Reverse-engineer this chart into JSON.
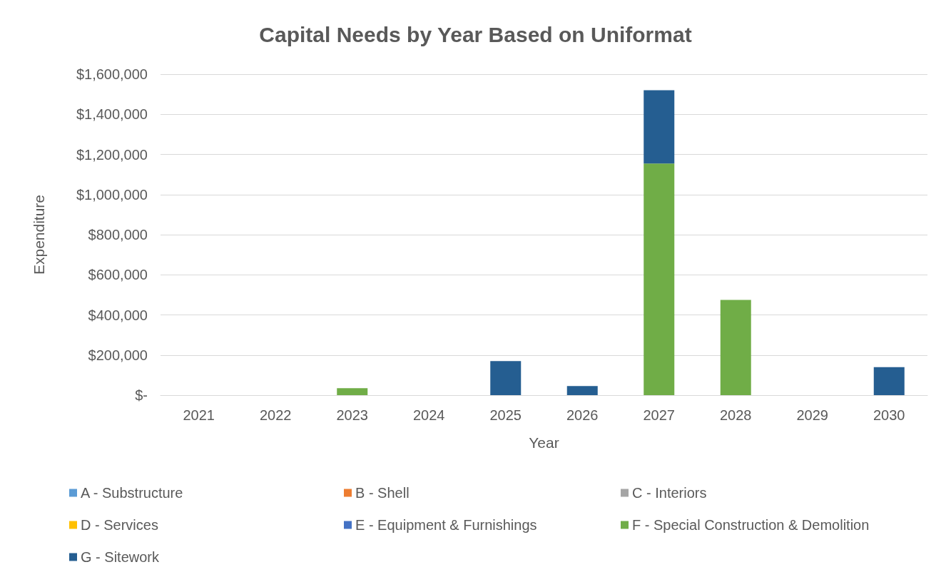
{
  "chart_data": {
    "type": "bar",
    "title": "Capital Needs by Year Based on Uniformat",
    "xlabel": "Year",
    "ylabel": "Expenditure",
    "categories": [
      "2021",
      "2022",
      "2023",
      "2024",
      "2025",
      "2026",
      "2027",
      "2028",
      "2029",
      "2030"
    ],
    "stacked": true,
    "series": [
      {
        "name": "A - Substructure",
        "color": "#5b9bd5",
        "values": [
          0,
          0,
          0,
          0,
          0,
          0,
          0,
          0,
          0,
          0
        ]
      },
      {
        "name": "B - Shell",
        "color": "#ed7d31",
        "values": [
          0,
          0,
          0,
          0,
          0,
          0,
          0,
          0,
          0,
          0
        ]
      },
      {
        "name": "C - Interiors",
        "color": "#a5a5a5",
        "values": [
          0,
          0,
          0,
          0,
          0,
          0,
          0,
          0,
          0,
          0
        ]
      },
      {
        "name": "D - Services",
        "color": "#ffc000",
        "values": [
          0,
          0,
          0,
          0,
          0,
          0,
          0,
          0,
          0,
          0
        ]
      },
      {
        "name": "E - Equipment & Furnishings",
        "color": "#4472c4",
        "values": [
          0,
          0,
          0,
          0,
          0,
          0,
          0,
          0,
          0,
          0
        ]
      },
      {
        "name": "F - Special Construction & Demolition",
        "color": "#70ad47",
        "values": [
          0,
          0,
          35000,
          0,
          0,
          0,
          1155000,
          475000,
          0,
          0
        ]
      },
      {
        "name": "G - Sitework",
        "color": "#255e91",
        "values": [
          0,
          0,
          0,
          0,
          170000,
          45000,
          365000,
          0,
          0,
          140000
        ]
      }
    ],
    "ylim": [
      0,
      1600000
    ],
    "yticks": [
      {
        "value": 0,
        "label": "$-"
      },
      {
        "value": 200000,
        "label": "$200,000"
      },
      {
        "value": 400000,
        "label": "$400,000"
      },
      {
        "value": 600000,
        "label": "$600,000"
      },
      {
        "value": 800000,
        "label": "$800,000"
      },
      {
        "value": 1000000,
        "label": "$1,000,000"
      },
      {
        "value": 1200000,
        "label": "$1,200,000"
      },
      {
        "value": 1400000,
        "label": "$1,400,000"
      },
      {
        "value": 1600000,
        "label": "$1,600,000"
      }
    ],
    "grid": "y",
    "legend": "bottom"
  }
}
